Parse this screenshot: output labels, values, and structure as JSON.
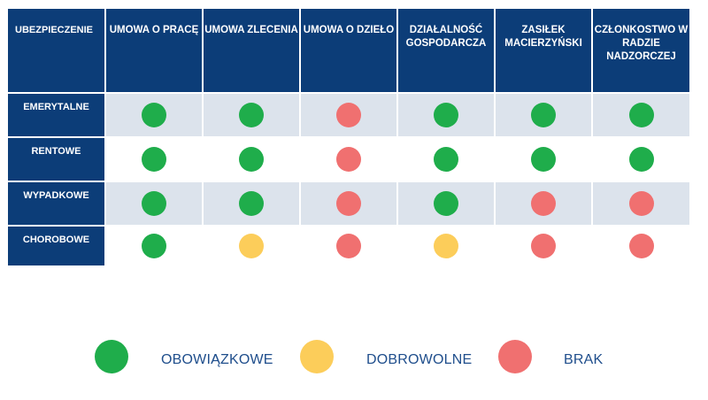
{
  "colors": {
    "header_bg": "#0c3d78",
    "header_text": "#ffffff",
    "shade_row": "#dce3ec",
    "green": "#1fad4b",
    "yellow": "#fccd5a",
    "red": "#f07070",
    "legend_text": "#1f4e8c"
  },
  "chart_data": {
    "type": "table",
    "corner_label": "UBEZPIECZENIE",
    "columns": [
      "UMOWA O PRACĘ",
      "UMOWA ZLECENIA",
      "UMOWA O DZIEŁO",
      "DZIAŁALNOŚĆ GOSPODARCZA",
      "ZASIŁEK MACIERZYŃSKI",
      "CZŁONKOSTWO W RADZIE NADZORCZEJ"
    ],
    "rows": [
      {
        "label": "EMERYTALNE",
        "values": [
          "green",
          "green",
          "red",
          "green",
          "green",
          "green"
        ]
      },
      {
        "label": "RENTOWE",
        "values": [
          "green",
          "green",
          "red",
          "green",
          "green",
          "green"
        ]
      },
      {
        "label": "WYPADKOWE",
        "values": [
          "green",
          "green",
          "red",
          "green",
          "red",
          "red"
        ]
      },
      {
        "label": "CHOROBOWE",
        "values": [
          "green",
          "yellow",
          "red",
          "yellow",
          "red",
          "red"
        ]
      }
    ],
    "legend": [
      {
        "key": "green",
        "label": "OBOWIĄZKOWE"
      },
      {
        "key": "yellow",
        "label": "DOBROWOLNE"
      },
      {
        "key": "red",
        "label": "BRAK"
      }
    ]
  }
}
